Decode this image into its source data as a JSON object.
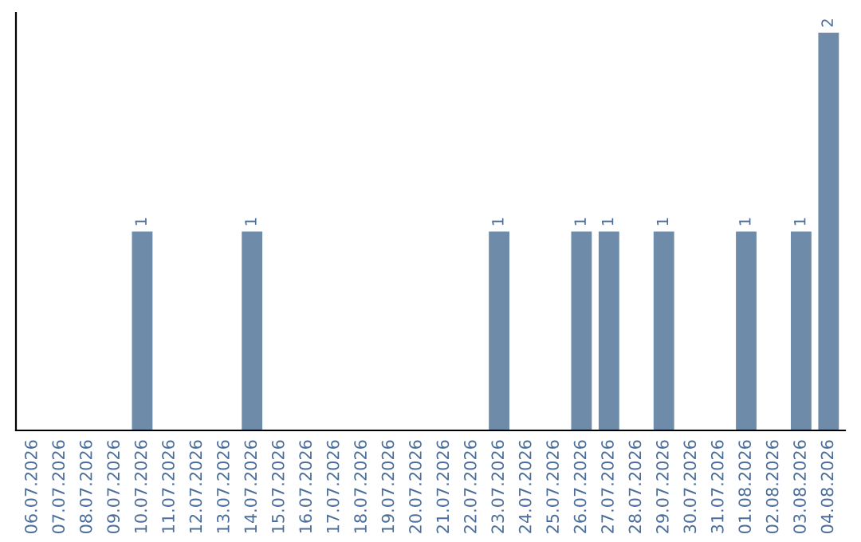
{
  "chart_data": {
    "type": "bar",
    "categories": [
      "06.07.2026",
      "07.07.2026",
      "08.07.2026",
      "09.07.2026",
      "10.07.2026",
      "11.07.2026",
      "12.07.2026",
      "13.07.2026",
      "14.07.2026",
      "15.07.2026",
      "16.07.2026",
      "17.07.2026",
      "18.07.2026",
      "19.07.2026",
      "20.07.2026",
      "21.07.2026",
      "22.07.2026",
      "23.07.2026",
      "24.07.2026",
      "25.07.2026",
      "26.07.2026",
      "27.07.2026",
      "28.07.2026",
      "29.07.2026",
      "30.07.2026",
      "31.07.2026",
      "01.08.2026",
      "02.08.2026",
      "03.08.2026",
      "04.08.2026"
    ],
    "values": [
      0,
      0,
      0,
      0,
      1,
      0,
      0,
      0,
      1,
      0,
      0,
      0,
      0,
      0,
      0,
      0,
      0,
      1,
      0,
      0,
      1,
      1,
      0,
      1,
      0,
      0,
      1,
      0,
      1,
      2
    ],
    "value_labels": [
      null,
      null,
      null,
      null,
      "1",
      null,
      null,
      null,
      "1",
      null,
      null,
      null,
      null,
      null,
      null,
      null,
      null,
      "1",
      null,
      null,
      "1",
      "1",
      null,
      "1",
      null,
      null,
      "1",
      null,
      "1",
      "2"
    ],
    "color": "#6e8caa",
    "grid": false,
    "legend": false
  }
}
